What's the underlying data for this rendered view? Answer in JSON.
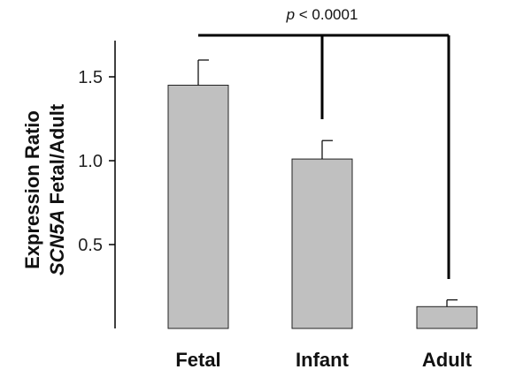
{
  "chart_data": {
    "type": "bar",
    "categories": [
      "Fetal",
      "Infant",
      "Adult"
    ],
    "values": [
      1.45,
      1.01,
      0.13
    ],
    "errors": [
      0.15,
      0.11,
      0.04
    ],
    "ylabel_line1": "Expression Ratio",
    "ylabel_line2_italic": "SCN5A",
    "ylabel_line2_rest": " Fetal/Adult",
    "ylim": [
      0,
      1.75
    ],
    "yticks": [
      0.5,
      1.0,
      1.5
    ],
    "ytick_labels": [
      "0.5",
      "1.0",
      "1.5"
    ],
    "annotation": {
      "italic": "p",
      "text": " < 0.0001"
    },
    "bar_color": "#c0c0c0"
  }
}
